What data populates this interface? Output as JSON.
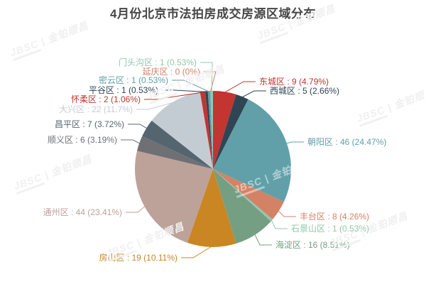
{
  "title": "4月份北京市法拍房成交房源区域分布",
  "watermark": "JBSC | 金铂顺昌",
  "chart_data": {
    "type": "pie",
    "title": "4月份北京市法拍房成交房源区域分布",
    "total": 188,
    "label_format": "{name} : {value} ({percent})",
    "label_position": "outside",
    "legend_position": "none",
    "start_angle_deg_from_top": 0,
    "direction": "clockwise",
    "series": [
      {
        "name": "东城区",
        "value": 9,
        "percent": "4.79%",
        "color": "#c23531"
      },
      {
        "name": "西城区",
        "value": 5,
        "percent": "2.66%",
        "color": "#2f4554"
      },
      {
        "name": "朝阳区",
        "value": 46,
        "percent": "24.47%",
        "color": "#61a0a8"
      },
      {
        "name": "丰台区",
        "value": 8,
        "percent": "4.26%",
        "color": "#d48265"
      },
      {
        "name": "石景山区",
        "value": 1,
        "percent": "0.53%",
        "color": "#91c7ae"
      },
      {
        "name": "海淀区",
        "value": 16,
        "percent": "8.51%",
        "color": "#749f83"
      },
      {
        "name": "房山区",
        "value": 19,
        "percent": "10.11%",
        "color": "#ca8622"
      },
      {
        "name": "通州区",
        "value": 44,
        "percent": "23.41%",
        "color": "#bda29a"
      },
      {
        "name": "顺义区",
        "value": 6,
        "percent": "3.19%",
        "color": "#6e7074"
      },
      {
        "name": "昌平区",
        "value": 7,
        "percent": "3.72%",
        "color": "#546570"
      },
      {
        "name": "大兴区",
        "value": 22,
        "percent": "11.7%",
        "color": "#c4ccd3"
      },
      {
        "name": "怀柔区",
        "value": 2,
        "percent": "1.06%",
        "color": "#c23531"
      },
      {
        "name": "平谷区",
        "value": 1,
        "percent": "0.53%",
        "color": "#2f4554"
      },
      {
        "name": "密云区",
        "value": 1,
        "percent": "0.53%",
        "color": "#61a0a8"
      },
      {
        "name": "延庆区",
        "value": 0,
        "percent": "0%",
        "color": "#d48265"
      },
      {
        "name": "门头沟区",
        "value": 1,
        "percent": "0.53%",
        "color": "#91c7ae"
      }
    ]
  }
}
